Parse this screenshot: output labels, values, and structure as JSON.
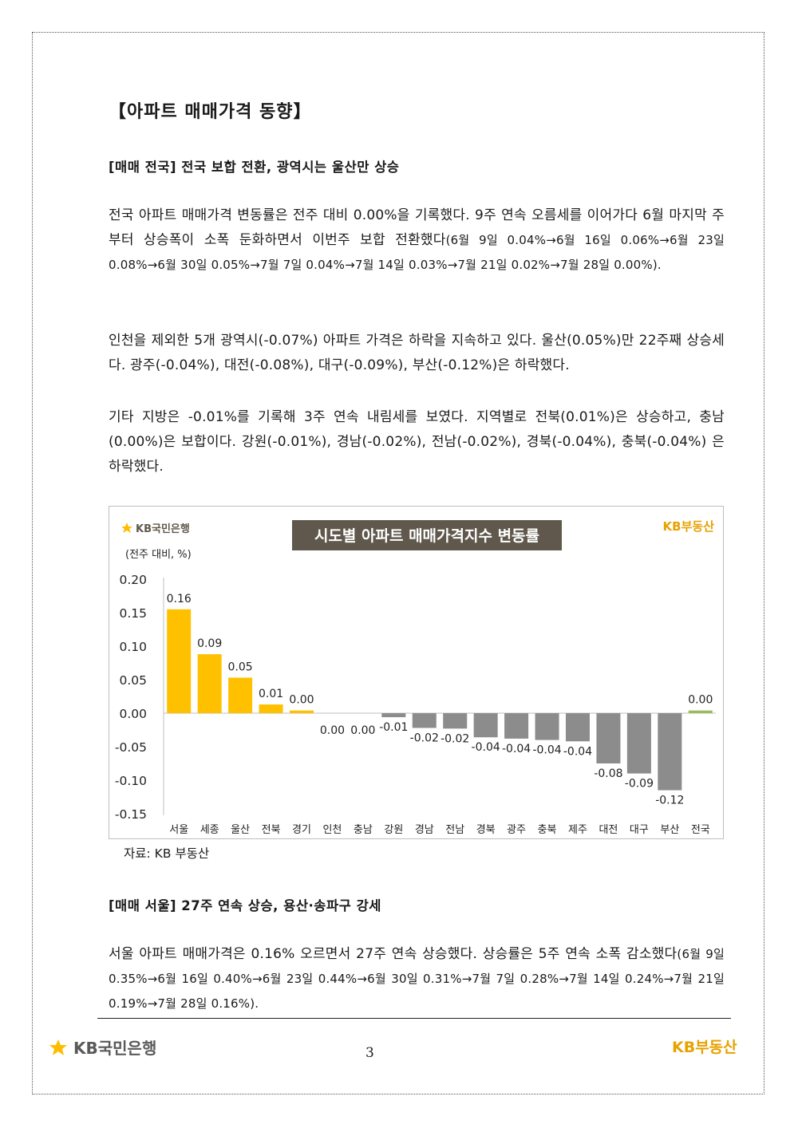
{
  "section_title": "【아파트 매매가격 동향】",
  "s1": {
    "title": "[매매 전국] 전국 보합 전환, 광역시는 울산만 상승",
    "p1_main": "전국 아파트 매매가격 변동률은 전주 대비 0.00%을 기록했다. 9주 연속 오름세를 이어가다 6월 마지막 주부터 상승폭이 소폭 둔화하면서 이번주 보합 전환했다",
    "p1_detail": "(6월 9일 0.04%→6월 16일 0.06%→6월 23일 0.08%→6월 30일 0.05%→7월 7일 0.04%→7월 14일 0.03%→7월 21일 0.02%→7월 28일 0.00%).",
    "p2": "인천을 제외한 5개 광역시(-0.07%) 아파트 가격은 하락을 지속하고 있다. 울산(0.05%)만 22주째 상승세다. 광주(-0.04%), 대전(-0.08%), 대구(-0.09%), 부산(-0.12%)은 하락했다.",
    "p3": "기타 지방은 -0.01%를 기록해 3주 연속 내림세를 보였다. 지역별로 전북(0.01%)은 상승하고, 충남(0.00%)은 보합이다. 강원(-0.01%), 경남(-0.02%), 전남(-0.02%), 경북(-0.04%), 충북(-0.04%) 은 하락했다."
  },
  "chart_header": {
    "brand_left": "KB국민은행",
    "brand_right": "KB부동산",
    "unit": "(전주 대비, %)"
  },
  "chart_data": {
    "type": "bar",
    "title": "시도별 아파트 매매가격지수 변동률",
    "ylabel": "(전주 대비, %)",
    "ylim": [
      -0.15,
      0.2
    ],
    "yticks": [
      0.2,
      0.15,
      0.1,
      0.05,
      0.0,
      -0.05,
      -0.1,
      -0.15
    ],
    "ytick_labels": [
      "0.20",
      "0.15",
      "0.10",
      "0.05",
      "0.00",
      "-0.05",
      "-0.10",
      "-0.15"
    ],
    "categories": [
      "서울",
      "세종",
      "울산",
      "전북",
      "경기",
      "인천",
      "충남",
      "강원",
      "경남",
      "전남",
      "경북",
      "광주",
      "충북",
      "제주",
      "대전",
      "대구",
      "부산",
      "전국"
    ],
    "values": [
      0.155,
      0.088,
      0.053,
      0.013,
      0.004,
      0.0,
      0.0,
      -0.006,
      -0.022,
      -0.023,
      -0.036,
      -0.038,
      -0.04,
      -0.042,
      -0.075,
      -0.09,
      -0.115,
      0.004
    ],
    "labels": [
      "0.16",
      "0.09",
      "0.05",
      "0.01",
      "0.00",
      "0.00",
      "0.00",
      "-0.01",
      "-0.02",
      "-0.02",
      "-0.04",
      "-0.04",
      "-0.04",
      "-0.04",
      "-0.08",
      "-0.09",
      "-0.12",
      "0.00"
    ],
    "colors": {
      "positive": "#FFC000",
      "negative": "#8C8C8C",
      "national": "#9BBB59"
    },
    "grid": false,
    "legend": "none"
  },
  "source": "자료: KB 부동산",
  "s2": {
    "title": "[매매 서울] 27주 연속 상승, 용산·송파구 강세",
    "p1_main": "서울 아파트 매매가격은 0.16% 오르면서 27주 연속 상승했다. 상승률은 5주 연속 소폭 감소했다",
    "p1_detail": "(6월 9일 0.35%→6월 16일 0.40%→6월 23일 0.44%→6월 30일 0.31%→7월 7일 0.28%→7월 14일 0.24%→7월 21일 0.19%→7월 28일 0.16%)."
  },
  "footer": {
    "logo_left": "KB국민은행",
    "page_number": "3",
    "logo_right": "KB부동산"
  },
  "brand_colors": {
    "kb_yellow": "#FFBC00",
    "kb_gray": "#60584C",
    "title_box": "#60584C"
  }
}
